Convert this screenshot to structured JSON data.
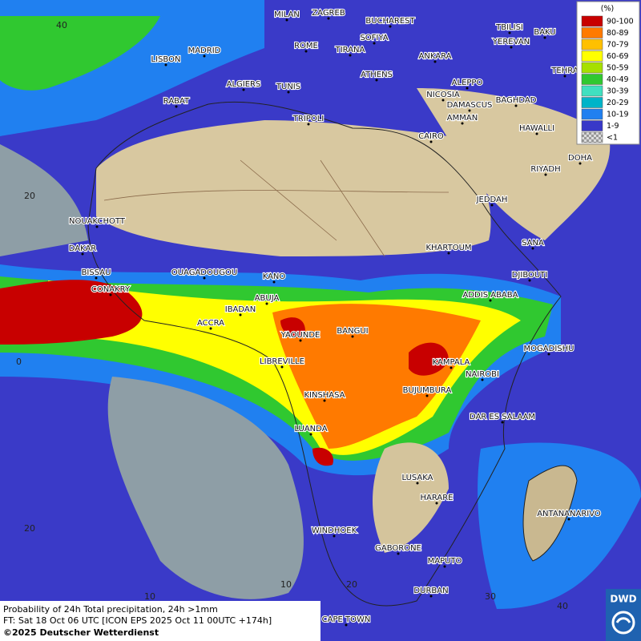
{
  "map": {
    "cities": [
      "MILAN",
      "ZAGREB",
      "BUCHAREST",
      "TBILISI",
      "BAKU",
      "SOFIYA",
      "YEREVAN",
      "MADRID",
      "ROME",
      "TIRANA",
      "ANKARA",
      "LISBON",
      "TEHRA",
      "ALGIERS",
      "TUNIS",
      "ATHENS",
      "ALEPPO",
      "RABAT",
      "NICOSIA",
      "BAGHDAD",
      "DAMASCUS",
      "TRIPOLI",
      "AMMAN",
      "HAWALLI",
      "CAIRO",
      "DOHA",
      "RIYADH",
      "JEDDAH",
      "NOUAKCHOTT",
      "SANA",
      "DAKAR",
      "KHARTOUM",
      "BISSAU",
      "OUAGADOUGOU",
      "DJIBOUTI",
      "KANO",
      "CONAKRY",
      "ABUJA",
      "ADDIS ABABA",
      "IBADAN",
      "ACCRA",
      "YAOUNDE",
      "BANGUI",
      "MOGADISHU",
      "LIBREVILLE",
      "KAMPALA",
      "NAIROBI",
      "BUJUMBURA",
      "KINSHASA",
      "DAR ES SALAAM",
      "LUANDA",
      "LUSAKA",
      "HARARE",
      "ANTANANARIVO",
      "WINDHOEK",
      "GABORONE",
      "MAPUTO",
      "DURBAN",
      "CAPE TOWN"
    ],
    "grid_labels": [
      "40",
      "20",
      "0",
      "20",
      "10",
      "10",
      "20",
      "30",
      "40"
    ]
  },
  "legend": {
    "unit": "(%)",
    "entries": [
      {
        "label": "90-100",
        "color": "#c80000"
      },
      {
        "label": "80-89",
        "color": "#ff7a00"
      },
      {
        "label": "70-79",
        "color": "#ffc000"
      },
      {
        "label": "60-69",
        "color": "#ffff00"
      },
      {
        "label": "50-59",
        "color": "#a6e000"
      },
      {
        "label": "40-49",
        "color": "#30c830"
      },
      {
        "label": "30-39",
        "color": "#40e0c0"
      },
      {
        "label": "20-29",
        "color": "#00b4c8"
      },
      {
        "label": "10-19",
        "color": "#2080f0"
      },
      {
        "label": "1-9",
        "color": "#3838c8"
      },
      {
        "label": "<1",
        "color": "#a0a0a0"
      }
    ]
  },
  "caption": {
    "line1": "Probability of 24h Total precipitation, 24h >1mm",
    "line2": "FT: Sat 18 Oct 06 UTC [ICON EPS 2025 Oct 11 00UTC +174h]",
    "line3": "©2025 Deutscher Wetterdienst",
    "logo": "DWD"
  }
}
